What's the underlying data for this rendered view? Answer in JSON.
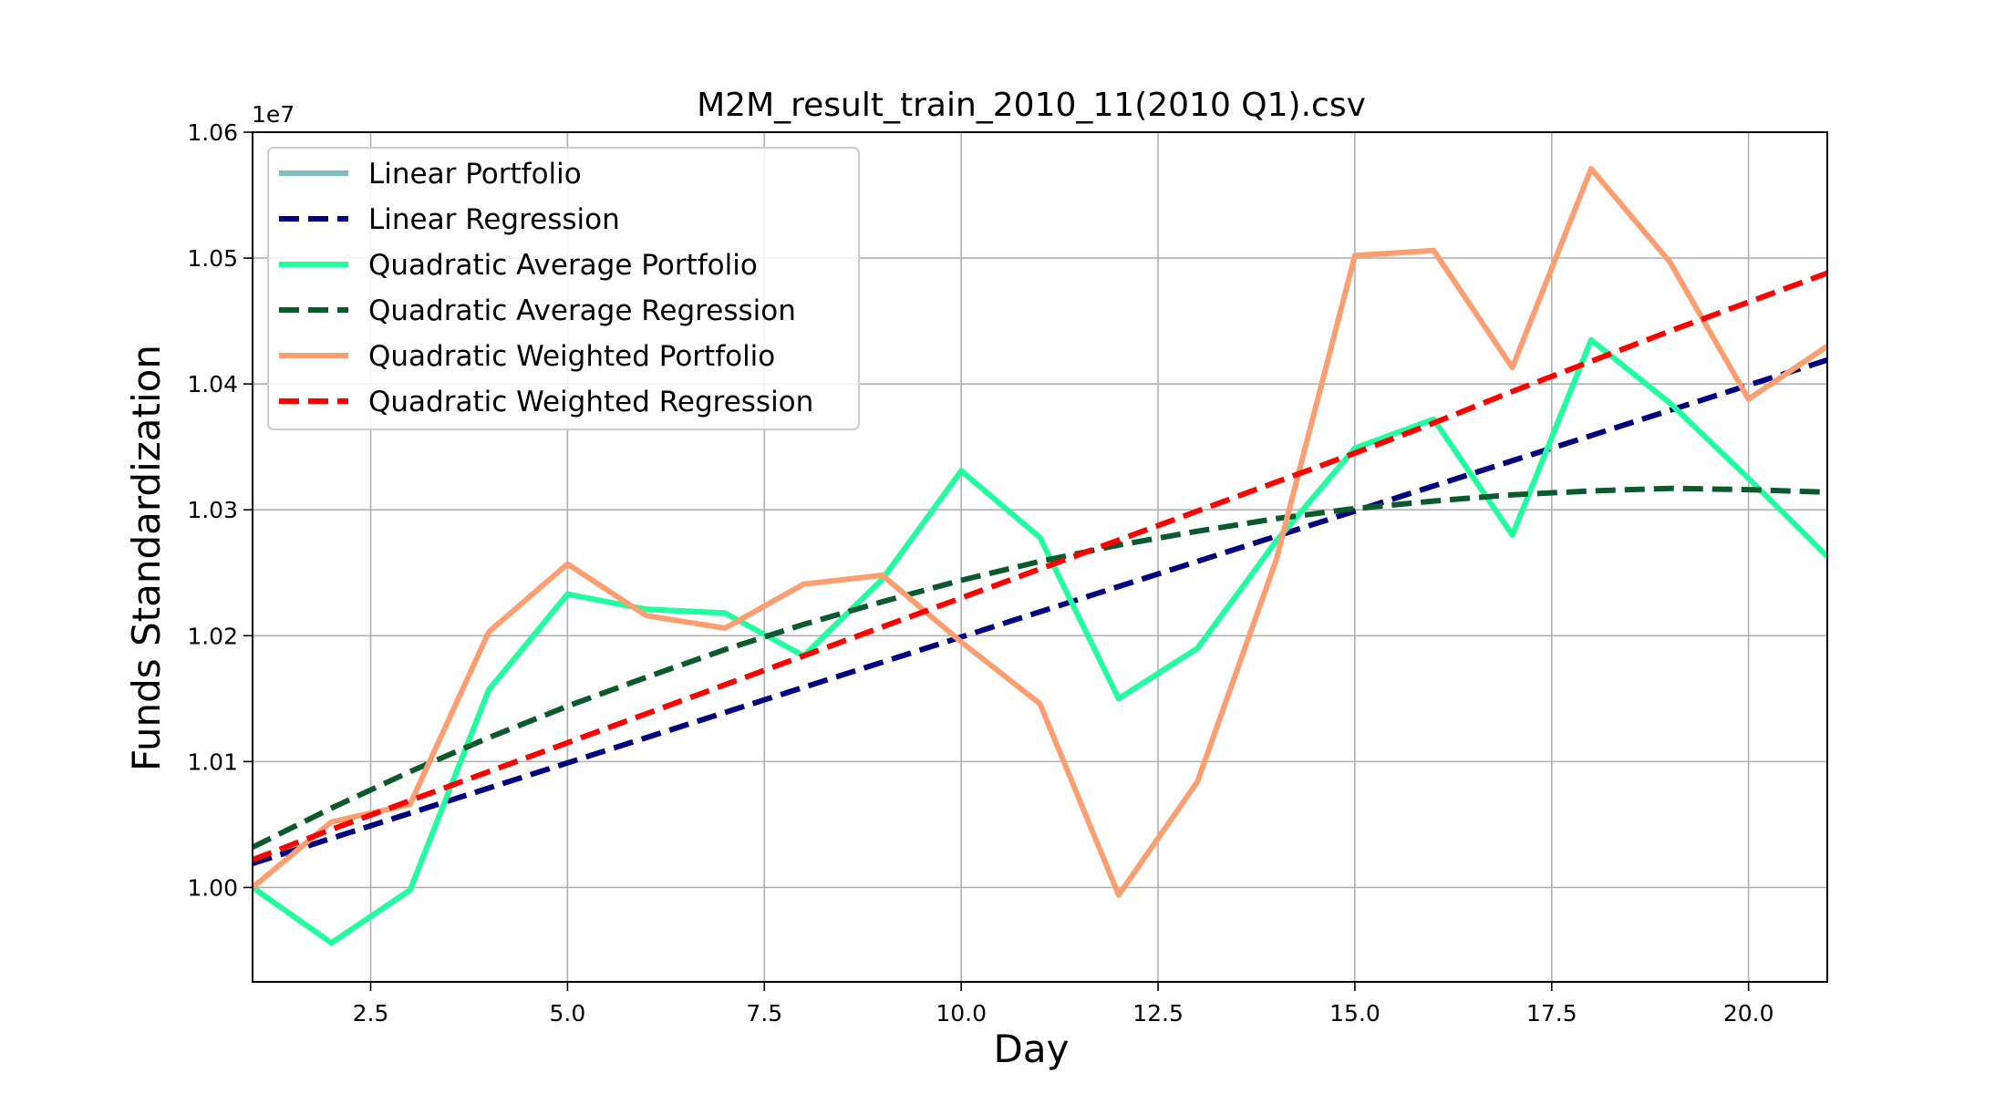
{
  "chart_data": {
    "type": "line",
    "title": "M2M_result_train_2010_11(2010 Q1).csv",
    "xlabel": "Day",
    "ylabel": "Funds Standardization",
    "y_offset_label": "1e7",
    "xlim": [
      1,
      21
    ],
    "ylim": [
      0.9925,
      1.06
    ],
    "x_ticks": [
      2.5,
      5.0,
      7.5,
      10.0,
      12.5,
      15.0,
      17.5,
      20.0
    ],
    "x_tick_labels": [
      "2.5",
      "5.0",
      "7.5",
      "10.0",
      "12.5",
      "15.0",
      "17.5",
      "20.0"
    ],
    "y_ticks": [
      1.0,
      1.01,
      1.02,
      1.03,
      1.04,
      1.05,
      1.06
    ],
    "y_tick_labels": [
      "1.00",
      "1.01",
      "1.02",
      "1.03",
      "1.04",
      "1.05",
      "1.06"
    ],
    "grid": true,
    "legend_position": "top-left",
    "x": [
      1,
      2,
      3,
      4,
      5,
      6,
      7,
      8,
      9,
      10,
      11,
      12,
      13,
      14,
      15,
      16,
      17,
      18,
      19,
      20,
      21
    ],
    "series": [
      {
        "name": "Linear Portfolio",
        "style": "solid",
        "color": "#7fbfbf",
        "values": [
          1.0,
          0.9956,
          0.9998,
          1.0157,
          1.0233,
          1.0221,
          1.0218,
          1.0184,
          1.0245,
          1.0331,
          1.0278,
          1.015,
          1.019,
          1.0275,
          1.0349,
          1.0372,
          1.028,
          1.0435,
          1.0385,
          1.0325,
          1.0263
        ]
      },
      {
        "name": "Linear Regression",
        "style": "dashed",
        "color": "#000080",
        "values": [
          1.0019,
          1.0039,
          1.0059,
          1.0079,
          1.0099,
          1.0119,
          1.0139,
          1.0159,
          1.0179,
          1.0199,
          1.0219,
          1.0239,
          1.0259,
          1.0279,
          1.0299,
          1.0319,
          1.0339,
          1.0359,
          1.0379,
          1.0399,
          1.0419
        ]
      },
      {
        "name": "Quadratic Average Portfolio",
        "style": "solid",
        "color": "#1fff9f",
        "values": [
          1.0,
          0.9956,
          0.9998,
          1.0157,
          1.0233,
          1.0221,
          1.0218,
          1.0184,
          1.0245,
          1.0331,
          1.0278,
          1.015,
          1.019,
          1.0275,
          1.0349,
          1.0372,
          1.028,
          1.0435,
          1.0385,
          1.0325,
          1.0263
        ]
      },
      {
        "name": "Quadratic Average Regression",
        "style": "dashed",
        "color": "#0b5a2e",
        "values": [
          1.0032,
          1.0063,
          1.0092,
          1.0119,
          1.0144,
          1.0167,
          1.0189,
          1.0209,
          1.0227,
          1.0244,
          1.0259,
          1.0272,
          1.0283,
          1.0293,
          1.0301,
          1.0307,
          1.0312,
          1.0315,
          1.0317,
          1.0316,
          1.0314
        ]
      },
      {
        "name": "Quadratic Weighted Portfolio",
        "style": "solid",
        "color": "#fc9e6f",
        "values": [
          1.0,
          1.0052,
          1.0066,
          1.0203,
          1.0257,
          1.0216,
          1.0206,
          1.0241,
          1.0248,
          1.0195,
          1.0146,
          0.9994,
          1.0084,
          1.026,
          1.0502,
          1.0506,
          1.0413,
          1.0571,
          1.0497,
          1.0388,
          1.043
        ]
      },
      {
        "name": "Quadratic Weighted Regression",
        "style": "dashed",
        "color": "#ff0000",
        "values": [
          1.0022,
          1.0046,
          1.0069,
          1.0092,
          1.0115,
          1.0138,
          1.0161,
          1.0184,
          1.0207,
          1.023,
          1.0253,
          1.0276,
          1.0299,
          1.0322,
          1.0345,
          1.0369,
          1.0394,
          1.0418,
          1.0442,
          1.0465,
          1.0488
        ]
      }
    ]
  }
}
